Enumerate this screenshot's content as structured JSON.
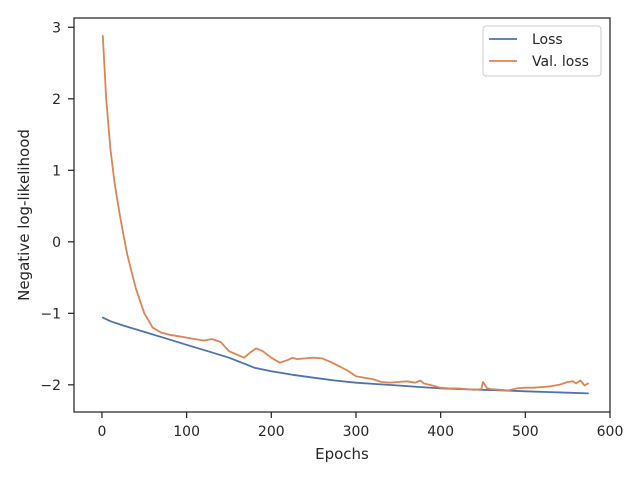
{
  "chart_data": {
    "type": "line",
    "xlabel": "Epochs",
    "ylabel": "Negative log-likelihood",
    "xlim": [
      -33,
      600
    ],
    "ylim": [
      -2.38,
      3.13
    ],
    "xticks": [
      0,
      100,
      200,
      300,
      400,
      500,
      600
    ],
    "yticks": [
      -2,
      -1,
      0,
      1,
      2,
      3
    ],
    "grid": false,
    "legend_position": "top-right",
    "series": [
      {
        "name": "Loss",
        "color": "#4c72b0",
        "x": [
          1,
          10,
          25,
          50,
          75,
          100,
          125,
          150,
          165,
          180,
          200,
          225,
          250,
          275,
          300,
          325,
          350,
          375,
          400,
          425,
          450,
          475,
          500,
          525,
          550,
          574
        ],
        "y": [
          -1.06,
          -1.11,
          -1.17,
          -1.26,
          -1.35,
          -1.44,
          -1.53,
          -1.62,
          -1.69,
          -1.76,
          -1.81,
          -1.86,
          -1.9,
          -1.94,
          -1.97,
          -1.99,
          -2.01,
          -2.03,
          -2.05,
          -2.06,
          -2.07,
          -2.08,
          -2.09,
          -2.1,
          -2.11,
          -2.12
        ]
      },
      {
        "name": "Val. loss",
        "color": "#dd8452",
        "x": [
          1,
          5,
          10,
          15,
          20,
          25,
          30,
          40,
          50,
          60,
          70,
          80,
          90,
          100,
          110,
          120,
          130,
          140,
          150,
          160,
          168,
          175,
          182,
          190,
          200,
          210,
          220,
          225,
          230,
          240,
          250,
          260,
          270,
          280,
          290,
          300,
          310,
          320,
          330,
          340,
          350,
          360,
          370,
          376,
          380,
          390,
          400,
          410,
          420,
          430,
          440,
          448,
          450,
          455,
          460,
          470,
          480,
          490,
          500,
          510,
          520,
          530,
          540,
          550,
          556,
          560,
          565,
          570,
          574
        ],
        "y": [
          2.88,
          2.0,
          1.3,
          0.82,
          0.45,
          0.12,
          -0.18,
          -0.65,
          -1.0,
          -1.2,
          -1.27,
          -1.3,
          -1.32,
          -1.34,
          -1.36,
          -1.38,
          -1.36,
          -1.4,
          -1.53,
          -1.58,
          -1.62,
          -1.55,
          -1.49,
          -1.53,
          -1.62,
          -1.69,
          -1.65,
          -1.62,
          -1.64,
          -1.63,
          -1.62,
          -1.63,
          -1.68,
          -1.74,
          -1.8,
          -1.88,
          -1.9,
          -1.92,
          -1.96,
          -1.97,
          -1.96,
          -1.95,
          -1.97,
          -1.94,
          -1.98,
          -2.01,
          -2.04,
          -2.05,
          -2.05,
          -2.06,
          -2.07,
          -2.06,
          -1.96,
          -2.05,
          -2.06,
          -2.07,
          -2.08,
          -2.05,
          -2.04,
          -2.04,
          -2.03,
          -2.02,
          -2.0,
          -1.96,
          -1.95,
          -1.98,
          -1.94,
          -2.01,
          -1.98
        ]
      }
    ]
  }
}
